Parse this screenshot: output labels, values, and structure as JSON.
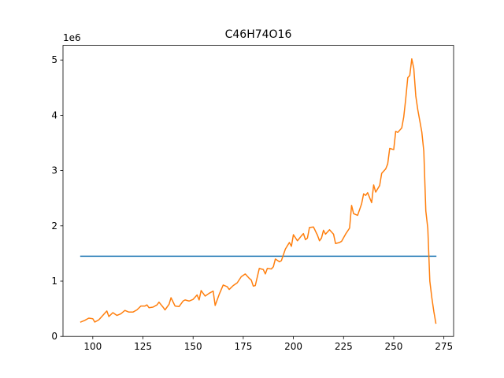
{
  "chart_data": {
    "type": "line",
    "title": "C46H74O16",
    "y_offset_label": "1e6",
    "xlim": [
      85.15,
      279.85
    ],
    "ylim": [
      0,
      5.265
    ],
    "xticks": [
      100,
      125,
      150,
      175,
      200,
      225,
      250,
      275
    ],
    "yticks": [
      0,
      1,
      2,
      3,
      4,
      5
    ],
    "series": [
      {
        "color": "#1f77b4",
        "x": [
          94,
          271
        ],
        "values": [
          1.45,
          1.45
        ]
      },
      {
        "color": "#ff7f0e",
        "x": [
          94,
          96,
          98,
          100,
          101,
          103,
          105,
          107,
          108,
          110,
          112,
          114,
          116,
          118,
          120,
          122,
          124,
          126,
          127,
          128,
          130,
          132,
          133,
          135,
          136,
          138,
          139,
          141,
          143,
          145,
          146,
          148,
          150,
          152,
          153,
          154,
          156,
          158,
          160,
          161,
          163,
          165,
          167,
          168,
          170,
          172,
          174,
          176,
          178,
          179,
          180,
          181,
          183,
          185,
          186,
          187,
          189,
          190,
          191,
          193,
          194,
          196,
          198,
          199,
          200,
          202,
          204,
          205,
          206,
          207,
          208,
          210,
          212,
          213,
          214,
          215,
          216,
          218,
          220,
          221,
          223,
          224,
          226,
          228,
          229,
          230,
          232,
          234,
          235,
          236,
          237,
          239,
          240,
          241,
          243,
          244,
          246,
          247,
          248,
          250,
          251,
          252,
          254,
          255,
          256,
          257,
          258,
          259,
          260,
          261,
          262,
          264,
          265,
          266,
          267,
          268,
          269,
          270,
          271
        ],
        "values": [
          0.26,
          0.29,
          0.33,
          0.32,
          0.26,
          0.3,
          0.38,
          0.46,
          0.36,
          0.43,
          0.38,
          0.41,
          0.47,
          0.44,
          0.44,
          0.48,
          0.55,
          0.55,
          0.57,
          0.52,
          0.53,
          0.57,
          0.62,
          0.53,
          0.48,
          0.58,
          0.7,
          0.55,
          0.54,
          0.64,
          0.66,
          0.64,
          0.67,
          0.75,
          0.66,
          0.83,
          0.73,
          0.78,
          0.82,
          0.56,
          0.76,
          0.93,
          0.9,
          0.85,
          0.92,
          0.97,
          1.08,
          1.13,
          1.05,
          1.02,
          0.91,
          0.92,
          1.23,
          1.21,
          1.13,
          1.23,
          1.22,
          1.26,
          1.4,
          1.35,
          1.37,
          1.58,
          1.7,
          1.63,
          1.84,
          1.73,
          1.82,
          1.86,
          1.75,
          1.78,
          1.97,
          1.98,
          1.83,
          1.73,
          1.78,
          1.92,
          1.85,
          1.93,
          1.85,
          1.68,
          1.7,
          1.72,
          1.85,
          1.96,
          2.37,
          2.22,
          2.19,
          2.4,
          2.58,
          2.55,
          2.6,
          2.42,
          2.74,
          2.61,
          2.73,
          2.95,
          3.03,
          3.12,
          3.4,
          3.38,
          3.71,
          3.69,
          3.77,
          3.97,
          4.3,
          4.68,
          4.72,
          5.02,
          4.85,
          4.35,
          4.1,
          3.7,
          3.35,
          2.27,
          1.95,
          1.0,
          0.7,
          0.45,
          0.24
        ]
      }
    ]
  }
}
